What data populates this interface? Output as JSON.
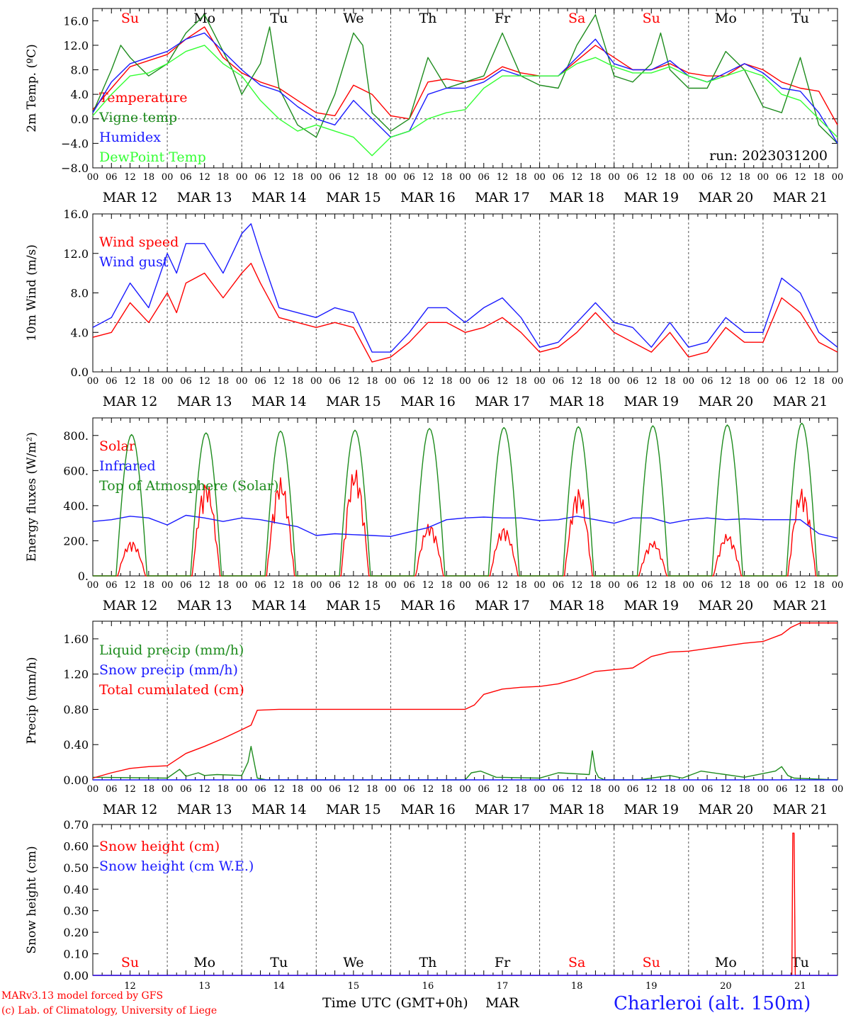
{
  "colors": {
    "red": "#ff0000",
    "green": "#1e8c1e",
    "blue": "#1a1aff",
    "lightgreen": "#33ff33",
    "grid": "#555555"
  },
  "days": {
    "top_names": [
      "Su",
      "Mo",
      "Tu",
      "We",
      "Th",
      "Fr",
      "Sa",
      "Su",
      "Mo",
      "Tu"
    ],
    "top_colors": [
      "red",
      "black",
      "black",
      "black",
      "black",
      "black",
      "red",
      "red",
      "black",
      "black"
    ],
    "date_labels": [
      "MAR 12",
      "MAR 13",
      "MAR 14",
      "MAR 15",
      "MAR 16",
      "MAR 17",
      "MAR 18",
      "MAR 19",
      "MAR 20",
      "MAR 21"
    ],
    "hour_ticks": [
      "00",
      "06",
      "12",
      "18"
    ],
    "hour_end": "00",
    "bottom_numbers": [
      "12",
      "13",
      "14",
      "15",
      "16",
      "17",
      "18",
      "19",
      "20",
      "21"
    ]
  },
  "footer": {
    "model": "MARv3.13 model forced by GFS",
    "lab": "(c) Lab. of Climatology, University of Liege",
    "axis_title": "Time UTC (GMT+0h)",
    "month": "MAR",
    "station": "Charleroi (alt. 150m)"
  },
  "chart_data": [
    {
      "type": "line",
      "ylabel": "2m Temp. (ºC)",
      "ylim": [
        -8,
        18
      ],
      "yticks": [
        -8,
        -4,
        0,
        4,
        8,
        12,
        16
      ],
      "ytick_labels": [
        "−8.0",
        "−4.0",
        "0.0",
        "4.0",
        "8.0",
        "12.0",
        "16.0"
      ],
      "hline": 0,
      "annotation": "run: 2023031200",
      "show_day_names": true,
      "x_unit": "hours since MAR 12 00 UTC",
      "series": [
        {
          "name": "Temperature",
          "color": "red",
          "x": [
            0,
            6,
            12,
            18,
            24,
            30,
            36,
            42,
            48,
            54,
            60,
            66,
            72,
            78,
            84,
            90,
            96,
            102,
            108,
            114,
            120,
            126,
            132,
            138,
            144,
            150,
            156,
            162,
            168,
            174,
            180,
            186,
            192,
            198,
            204,
            210,
            216,
            222,
            228,
            234,
            240
          ],
          "y": [
            1.5,
            5,
            8.5,
            9.5,
            10.5,
            13,
            15,
            10,
            7.5,
            6,
            5,
            3,
            1,
            0.5,
            5.5,
            4,
            0.5,
            0,
            6,
            6.5,
            6,
            6.5,
            8.5,
            7.5,
            7,
            7,
            9.5,
            12,
            10,
            8,
            8,
            9,
            7.5,
            7,
            7,
            9,
            8,
            6,
            5,
            4.5,
            -1
          ]
        },
        {
          "name": "Vigne temp",
          "color": "green",
          "x": [
            0,
            6,
            9,
            12,
            18,
            24,
            30,
            36,
            42,
            45,
            48,
            54,
            57,
            60,
            66,
            72,
            78,
            84,
            87,
            90,
            96,
            102,
            108,
            114,
            120,
            126,
            132,
            138,
            144,
            150,
            156,
            162,
            168,
            174,
            180,
            183,
            186,
            192,
            198,
            204,
            210,
            216,
            222,
            228,
            234,
            240
          ],
          "y": [
            1,
            8,
            12,
            10,
            7,
            9,
            14,
            17,
            11,
            8,
            4,
            9,
            15,
            5,
            -1,
            -3,
            4,
            14,
            12,
            1,
            -2,
            0,
            10,
            5,
            6,
            7,
            14,
            7,
            5.5,
            5,
            12,
            17,
            7,
            6,
            9,
            14,
            8,
            5,
            5,
            11,
            8,
            2,
            1,
            10,
            -1,
            -4
          ]
        },
        {
          "name": "Humidex",
          "color": "blue",
          "x": [
            0,
            6,
            12,
            18,
            24,
            30,
            36,
            42,
            48,
            54,
            60,
            66,
            72,
            78,
            84,
            90,
            96,
            102,
            108,
            114,
            120,
            126,
            132,
            138,
            144,
            150,
            156,
            162,
            168,
            174,
            180,
            186,
            192,
            198,
            204,
            210,
            216,
            222,
            228,
            234,
            240
          ],
          "y": [
            1,
            6,
            9,
            10,
            11,
            13,
            14,
            11,
            8,
            5.5,
            4.5,
            2,
            0,
            -1,
            3,
            0,
            -3,
            -2,
            4,
            5,
            5,
            6,
            8,
            7,
            7,
            7,
            10,
            13,
            9,
            8,
            8,
            9.5,
            7,
            6,
            7.5,
            9,
            7.5,
            5,
            4.5,
            1,
            -4
          ]
        },
        {
          "name": "DewPoint Temp",
          "color": "lightgreen",
          "x": [
            0,
            6,
            12,
            18,
            24,
            30,
            36,
            42,
            48,
            54,
            60,
            66,
            72,
            78,
            84,
            90,
            96,
            102,
            108,
            114,
            120,
            126,
            132,
            138,
            144,
            150,
            156,
            162,
            168,
            174,
            180,
            186,
            192,
            198,
            204,
            210,
            216,
            222,
            228,
            234,
            240
          ],
          "y": [
            0.5,
            4,
            7,
            7.5,
            9,
            11,
            12,
            9,
            7,
            3,
            0,
            -2,
            -1,
            -2,
            -3,
            -6,
            -3,
            -2,
            0,
            1,
            1.5,
            5,
            7,
            7,
            7,
            7,
            9,
            10,
            8.5,
            7.5,
            7.5,
            8.5,
            7,
            6,
            7,
            8,
            7,
            4,
            3,
            0,
            -3
          ]
        }
      ]
    },
    {
      "type": "line",
      "ylabel": "10m Wind (m/s)",
      "ylim": [
        0,
        16
      ],
      "yticks": [
        0,
        4,
        8,
        12,
        16
      ],
      "ytick_labels": [
        "0.0",
        "4.0",
        "8.0",
        "12.0",
        "16.0"
      ],
      "hline": 5,
      "series": [
        {
          "name": "Wind speed",
          "color": "red",
          "x": [
            0,
            6,
            12,
            18,
            24,
            27,
            30,
            36,
            42,
            48,
            51,
            54,
            60,
            66,
            72,
            78,
            84,
            90,
            96,
            102,
            108,
            114,
            120,
            126,
            132,
            138,
            144,
            150,
            156,
            162,
            168,
            174,
            180,
            186,
            192,
            198,
            204,
            210,
            216,
            222,
            228,
            234,
            240
          ],
          "y": [
            3.5,
            4,
            7,
            5,
            8,
            6,
            9,
            10,
            7.5,
            10,
            11,
            9,
            5.5,
            5,
            4.5,
            5,
            4.5,
            1,
            1.5,
            3,
            5,
            5,
            4,
            4.5,
            5.5,
            4,
            2,
            2.5,
            4,
            6,
            4,
            3,
            2,
            4,
            1.5,
            2,
            4.5,
            3,
            3,
            7.5,
            6,
            3,
            2
          ]
        },
        {
          "name": "Wind gust",
          "color": "blue",
          "x": [
            0,
            6,
            12,
            18,
            24,
            27,
            30,
            36,
            42,
            48,
            51,
            54,
            60,
            66,
            72,
            78,
            84,
            90,
            96,
            102,
            108,
            114,
            120,
            126,
            132,
            138,
            144,
            150,
            156,
            162,
            168,
            174,
            180,
            186,
            192,
            198,
            204,
            210,
            216,
            222,
            228,
            234,
            240
          ],
          "y": [
            4.5,
            5.5,
            9,
            6.5,
            12,
            10,
            13,
            13,
            10,
            14,
            15,
            12,
            6.5,
            6,
            5.5,
            6.5,
            6,
            2,
            2,
            4,
            6.5,
            6.5,
            5,
            6.5,
            7.5,
            5.5,
            2.5,
            3,
            5,
            7,
            5,
            4.5,
            2.5,
            5,
            2.5,
            3,
            5.5,
            4,
            4,
            9.5,
            8,
            4,
            2.5
          ]
        }
      ]
    },
    {
      "type": "line",
      "ylabel": "Energy fluxes (W/m²)",
      "ylim": [
        0,
        900
      ],
      "yticks": [
        0,
        200,
        400,
        600,
        800
      ],
      "ytick_labels": [
        "0.",
        "200.",
        "400.",
        "600.",
        "800."
      ],
      "series": [
        {
          "name": "Solar",
          "color": "red",
          "day_peaks": [
            200,
            540,
            560,
            615,
            300,
            280,
            500,
            200,
            240,
            500
          ]
        },
        {
          "name": "Infrared",
          "color": "blue",
          "x": [
            0,
            6,
            12,
            18,
            24,
            30,
            36,
            42,
            48,
            54,
            60,
            66,
            72,
            78,
            84,
            90,
            96,
            102,
            108,
            114,
            120,
            126,
            132,
            138,
            144,
            150,
            156,
            162,
            168,
            174,
            180,
            186,
            192,
            198,
            204,
            210,
            216,
            222,
            228,
            234,
            240
          ],
          "y": [
            310,
            320,
            340,
            330,
            290,
            345,
            330,
            310,
            330,
            320,
            300,
            280,
            230,
            240,
            235,
            230,
            225,
            250,
            275,
            320,
            330,
            335,
            330,
            330,
            315,
            320,
            340,
            320,
            300,
            330,
            330,
            300,
            320,
            330,
            320,
            325,
            320,
            320,
            320,
            240,
            215
          ]
        },
        {
          "name": "Top of Atmosphere (Solar)",
          "color": "green",
          "day_peaks": [
            805,
            815,
            825,
            830,
            840,
            845,
            850,
            855,
            860,
            870
          ]
        }
      ]
    },
    {
      "type": "line",
      "ylabel": "Precip (mm/h)",
      "ylim": [
        0,
        1.8
      ],
      "yticks": [
        0,
        0.4,
        0.8,
        1.2,
        1.6
      ],
      "ytick_labels": [
        "0.00",
        "0.40",
        "0.80",
        "1.20",
        "1.60"
      ],
      "series": [
        {
          "name": "Liquid precip (mm/h)",
          "color": "green",
          "x": [
            0,
            24,
            28,
            30,
            34,
            36,
            40,
            48,
            50,
            51,
            52,
            53,
            56,
            120,
            122,
            125,
            130,
            144,
            150,
            160,
            161,
            162,
            163,
            165,
            176,
            186,
            190,
            196,
            210,
            220,
            222,
            224,
            226,
            240
          ],
          "y": [
            0.03,
            0.02,
            0.12,
            0.04,
            0.08,
            0.05,
            0.06,
            0.05,
            0.2,
            0.38,
            0.2,
            0.02,
            0,
            0,
            0.08,
            0.1,
            0.03,
            0.02,
            0.08,
            0.06,
            0.33,
            0.1,
            0.03,
            0,
            0,
            0.05,
            0.02,
            0.1,
            0.03,
            0.1,
            0.15,
            0.05,
            0.02,
            0
          ]
        },
        {
          "name": "Snow precip (mm/h)",
          "color": "blue",
          "x": [
            0,
            240
          ],
          "y": [
            0,
            0
          ]
        },
        {
          "name": "Total cumulated (cm)",
          "color": "red",
          "x": [
            0,
            6,
            12,
            18,
            24,
            30,
            36,
            42,
            48,
            51,
            53,
            60,
            72,
            84,
            96,
            108,
            120,
            123,
            126,
            132,
            138,
            144,
            150,
            156,
            162,
            168,
            174,
            180,
            186,
            192,
            198,
            204,
            210,
            216,
            222,
            225,
            228,
            240
          ],
          "y": [
            0.02,
            0.08,
            0.13,
            0.15,
            0.16,
            0.3,
            0.38,
            0.47,
            0.57,
            0.62,
            0.79,
            0.8,
            0.8,
            0.8,
            0.8,
            0.8,
            0.8,
            0.85,
            0.97,
            1.03,
            1.05,
            1.06,
            1.09,
            1.15,
            1.23,
            1.25,
            1.27,
            1.4,
            1.45,
            1.46,
            1.49,
            1.52,
            1.55,
            1.57,
            1.65,
            1.73,
            1.78,
            1.78
          ]
        }
      ]
    },
    {
      "type": "line",
      "ylabel": "Snow height (cm)",
      "ylim": [
        0,
        0.7
      ],
      "yticks": [
        0,
        0.1,
        0.2,
        0.3,
        0.4,
        0.5,
        0.6,
        0.7
      ],
      "ytick_labels": [
        "0.00",
        "0.10",
        "0.20",
        "0.30",
        "0.40",
        "0.50",
        "0.60",
        "0.70"
      ],
      "show_day_names": true,
      "series": [
        {
          "name": "Snow height (cm)",
          "color": "red",
          "x": [
            0,
            225.3,
            225.6,
            226,
            226.4,
            240
          ],
          "y": [
            0,
            0,
            0.66,
            0.66,
            0,
            0
          ]
        },
        {
          "name": "Snow height (cm W.E.)",
          "color": "blue",
          "x": [
            0,
            240
          ],
          "y": [
            0,
            0
          ]
        }
      ]
    }
  ]
}
